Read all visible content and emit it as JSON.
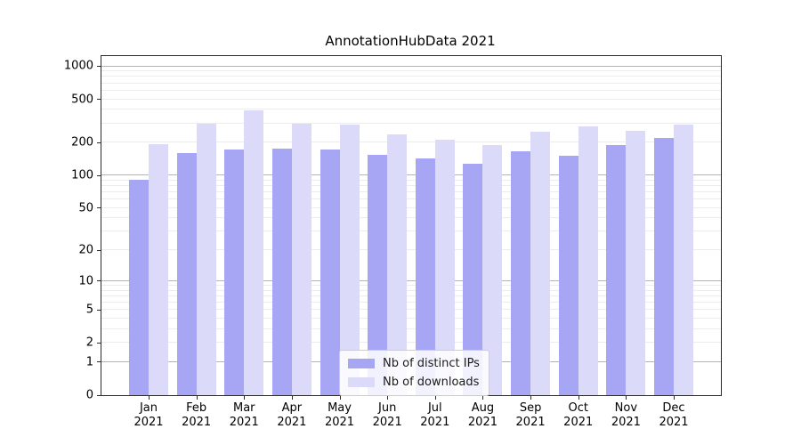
{
  "chart_data": {
    "type": "bar",
    "title": "AnnotationHubData 2021",
    "categories": [
      "Jan",
      "Feb",
      "Mar",
      "Apr",
      "May",
      "Jun",
      "Jul",
      "Aug",
      "Sep",
      "Oct",
      "Nov",
      "Dec"
    ],
    "category_year": "2021",
    "series": [
      {
        "name": "Nb of distinct IPs",
        "color": "#a6a6f4",
        "values": [
          91,
          161,
          173,
          178,
          174,
          154,
          143,
          128,
          166,
          152,
          189,
          222
        ]
      },
      {
        "name": "Nb of downloads",
        "color": "#dbdbf9",
        "values": [
          194,
          300,
          395,
          297,
          293,
          239,
          213,
          192,
          251,
          283,
          259,
          291
        ]
      }
    ],
    "yscale": "log1p",
    "ylim": [
      0,
      1240
    ],
    "yticks": [
      0,
      1,
      2,
      5,
      10,
      20,
      50,
      100,
      200,
      500,
      1000
    ],
    "grid": {
      "major_lines": [
        1,
        10,
        100,
        1000
      ],
      "minor_log_decades": [
        1,
        10,
        100
      ]
    },
    "legend": {
      "position": "lower-center"
    }
  }
}
